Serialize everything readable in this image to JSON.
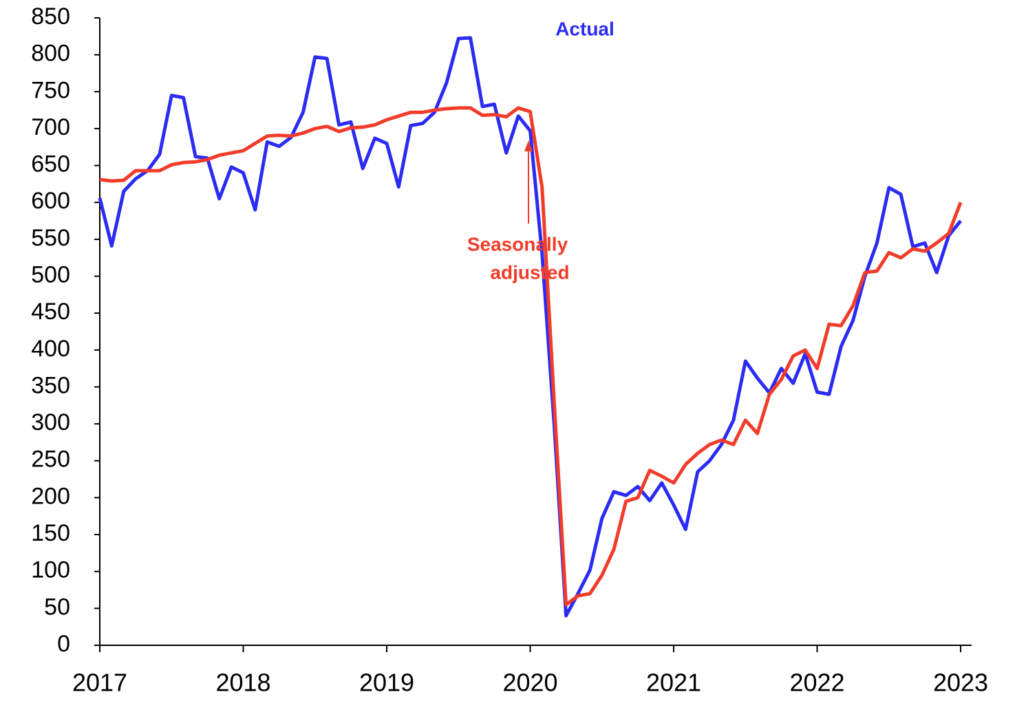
{
  "chart_data": {
    "type": "line",
    "x": [
      2017,
      2017.083,
      2017.167,
      2017.25,
      2017.333,
      2017.417,
      2017.5,
      2017.583,
      2017.667,
      2017.75,
      2017.833,
      2017.917,
      2018,
      2018.083,
      2018.167,
      2018.25,
      2018.333,
      2018.417,
      2018.5,
      2018.583,
      2018.667,
      2018.75,
      2018.833,
      2018.917,
      2019,
      2019.083,
      2019.167,
      2019.25,
      2019.333,
      2019.417,
      2019.5,
      2019.583,
      2019.667,
      2019.75,
      2019.833,
      2019.917,
      2020,
      2020.083,
      2020.167,
      2020.25,
      2020.333,
      2020.417,
      2020.5,
      2020.583,
      2020.667,
      2020.75,
      2020.833,
      2020.917,
      2021,
      2021.083,
      2021.167,
      2021.25,
      2021.333,
      2021.417,
      2021.5,
      2021.583,
      2021.667,
      2021.75,
      2021.833,
      2021.917,
      2022,
      2022.083,
      2022.167,
      2022.25,
      2022.333,
      2022.417,
      2022.5,
      2022.583,
      2022.667,
      2022.75,
      2022.833,
      2022.917,
      2023
    ],
    "series": [
      {
        "name": "Actual",
        "color": "#2b2bf5",
        "values": [
          606,
          541,
          615,
          632,
          643,
          665,
          745,
          742,
          662,
          660,
          605,
          648,
          640,
          590,
          682,
          676,
          688,
          722,
          797,
          795,
          705,
          709,
          646,
          687,
          680,
          621,
          704,
          707,
          722,
          762,
          822,
          823,
          730,
          733,
          667,
          717,
          697,
          530,
          300,
          40,
          70,
          102,
          172,
          208,
          203,
          215,
          196,
          220,
          190,
          157,
          235,
          250,
          272,
          305,
          385,
          362,
          342,
          375,
          355,
          395,
          343,
          340,
          405,
          440,
          500,
          545,
          620,
          611,
          540,
          545,
          505,
          555,
          575
        ]
      },
      {
        "name": [
          "Seasonally",
          "adjusted"
        ],
        "color": "#f23c2a",
        "values": [
          631,
          629,
          630,
          643,
          643,
          643,
          651,
          654,
          655,
          658,
          664,
          667,
          670,
          680,
          690,
          691,
          690,
          694,
          700,
          703,
          696,
          701,
          702,
          705,
          712,
          717,
          722,
          722,
          725,
          727,
          728,
          728,
          718,
          719,
          716,
          728,
          723,
          620,
          330,
          55,
          67,
          70,
          95,
          130,
          195,
          200,
          237,
          229,
          220,
          245,
          260,
          272,
          278,
          272,
          305,
          287,
          340,
          360,
          392,
          400,
          375,
          435,
          433,
          460,
          505,
          507,
          532,
          525,
          537,
          534,
          545,
          558,
          600
        ]
      }
    ],
    "xlim": [
      2017,
      2023
    ],
    "xticks": [
      2017,
      2018,
      2019,
      2020,
      2021,
      2022,
      2023
    ],
    "ylim": [
      0,
      850
    ],
    "yticks": [
      0,
      50,
      100,
      150,
      200,
      250,
      300,
      350,
      400,
      450,
      500,
      550,
      600,
      650,
      700,
      750,
      800,
      850
    ],
    "grid": false
  }
}
